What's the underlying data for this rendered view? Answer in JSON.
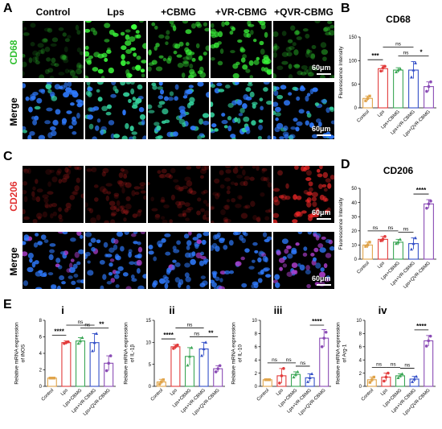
{
  "panels": {
    "A": "A",
    "B": "B",
    "C": "C",
    "D": "D",
    "E": "E"
  },
  "columns": [
    "Control",
    "Lps",
    "+CBMG",
    "+VR-CBMG",
    "+QVR-CBMG"
  ],
  "rows": {
    "cd68": "CD68",
    "merge": "Merge",
    "cd206": "CD206"
  },
  "scale_label": "60μm",
  "colors": {
    "control": "#e0a44a",
    "lps": "#e23b3b",
    "cbmg": "#3aa655",
    "vr": "#3450c8",
    "qvr": "#8a4bb5",
    "green_stain": "#3cff3c",
    "red_stain": "#ff2a2a",
    "blue_stain": "#2f7bff"
  },
  "chart_data": [
    {
      "id": "B",
      "type": "bar",
      "title": "CD68",
      "ylabel": "Fluorescence Intensity",
      "categories": [
        "Control",
        "Lps",
        "Lps+CBMG",
        "Lps+VR-CBMG",
        "Lps+QVR-CBMG"
      ],
      "values": [
        20,
        83,
        80,
        80,
        45
      ],
      "errors": [
        5,
        7,
        5,
        18,
        10
      ],
      "points": [
        [
          15,
          20,
          25
        ],
        [
          78,
          85,
          88
        ],
        [
          76,
          80,
          83
        ],
        [
          65,
          80,
          95
        ],
        [
          35,
          45,
          55
        ]
      ],
      "ylim": [
        0,
        150
      ],
      "yticks": [
        "0",
        "50",
        "100",
        "150"
      ],
      "sig": [
        {
          "from": 0,
          "to": 1,
          "label": "***"
        },
        {
          "from": 1,
          "to": 3,
          "label": "ns"
        },
        {
          "from": 2,
          "to": 3,
          "label": "ns"
        },
        {
          "from": 3,
          "to": 4,
          "label": "*"
        }
      ]
    },
    {
      "id": "D",
      "type": "bar",
      "title": "CD206",
      "ylabel": "Fluorescence Intensity",
      "categories": [
        "Control",
        "Lps",
        "Lps+CBMG",
        "Lps+VR-CBMG",
        "Lps+QVR-CBMG"
      ],
      "values": [
        10,
        14,
        12,
        11,
        39
      ],
      "errors": [
        2,
        2,
        2,
        4,
        3
      ],
      "points": [
        [
          9,
          10,
          12
        ],
        [
          13,
          14,
          16
        ],
        [
          11,
          12,
          14
        ],
        [
          7,
          11,
          15
        ],
        [
          36,
          39,
          41
        ]
      ],
      "ylim": [
        0,
        50
      ],
      "yticks": [
        "0",
        "10",
        "20",
        "30",
        "40",
        "50"
      ],
      "sig": [
        {
          "from": 0,
          "to": 1,
          "label": "ns"
        },
        {
          "from": 1,
          "to": 2,
          "label": "ns"
        },
        {
          "from": 2,
          "to": 3,
          "label": "ns"
        },
        {
          "from": 3,
          "to": 4,
          "label": "****"
        }
      ]
    },
    {
      "id": "i",
      "type": "bar",
      "title": "i",
      "ylabel": "Relative mRNA expression\nof iNOS",
      "categories": [
        "Control",
        "Lps",
        "Lps+CBMG",
        "Lps+VR-CBMG",
        "Lps+QVR-CBMG"
      ],
      "values": [
        1.0,
        5.3,
        5.5,
        5.3,
        2.8
      ],
      "errors": [
        0.1,
        0.2,
        0.4,
        1.1,
        0.9
      ],
      "points": [
        [
          1.0,
          1.0,
          1.0
        ],
        [
          5.2,
          5.3,
          5.4
        ],
        [
          5.2,
          5.5,
          5.9
        ],
        [
          4.3,
          5.3,
          6.4
        ],
        [
          1.9,
          2.8,
          3.7
        ]
      ],
      "ylim": [
        0,
        8
      ],
      "yticks": [
        "0",
        "2",
        "4",
        "6",
        "8"
      ],
      "sig": [
        {
          "from": 0,
          "to": 1,
          "label": "****"
        },
        {
          "from": 1,
          "to": 3,
          "label": "ns"
        },
        {
          "from": 2,
          "to": 3,
          "label": "ns"
        },
        {
          "from": 3,
          "to": 4,
          "label": "**"
        }
      ]
    },
    {
      "id": "ii",
      "type": "bar",
      "title": "ii",
      "ylabel": "Relative mRNA expression\nof IL-1β",
      "categories": [
        "Control",
        "Lps",
        "Lps+CBMG",
        "Lps+VR-CBMG",
        "Lps+QVR-CBMG"
      ],
      "values": [
        1.0,
        9.0,
        6.8,
        8.5,
        4.0
      ],
      "errors": [
        0.6,
        0.5,
        2.0,
        1.5,
        0.7
      ],
      "points": [
        [
          0.5,
          1.0,
          1.5
        ],
        [
          8.6,
          9.0,
          9.4
        ],
        [
          4.8,
          6.8,
          8.8
        ],
        [
          7.0,
          8.5,
          10.0
        ],
        [
          3.3,
          4.0,
          4.7
        ]
      ],
      "ylim": [
        0,
        15
      ],
      "yticks": [
        "0",
        "5",
        "10",
        "15"
      ],
      "sig": [
        {
          "from": 0,
          "to": 1,
          "label": "****"
        },
        {
          "from": 1,
          "to": 3,
          "label": "ns"
        },
        {
          "from": 2,
          "to": 3,
          "label": "ns"
        },
        {
          "from": 3,
          "to": 4,
          "label": "**"
        }
      ]
    },
    {
      "id": "iii",
      "type": "bar",
      "title": "iii",
      "ylabel": "Relative mRNA expression\nof IL-10",
      "categories": [
        "Control",
        "Lps",
        "Lps+CBMG",
        "Lps+VR-CBMG",
        "Lps+QVR-CBMG"
      ],
      "values": [
        1.0,
        1.6,
        1.8,
        1.3,
        7.3
      ],
      "errors": [
        0.1,
        1.1,
        0.4,
        0.6,
        1.3
      ],
      "points": [
        [
          1.0,
          1.0,
          1.0
        ],
        [
          0.5,
          1.6,
          2.7
        ],
        [
          1.4,
          1.8,
          2.2
        ],
        [
          0.7,
          1.3,
          1.9
        ],
        [
          6.0,
          7.3,
          8.2
        ]
      ],
      "ylim": [
        0,
        10
      ],
      "yticks": [
        "0",
        "2",
        "4",
        "6",
        "8",
        "10"
      ],
      "sig": [
        {
          "from": 0,
          "to": 1,
          "label": "ns"
        },
        {
          "from": 1,
          "to": 2,
          "label": "ns"
        },
        {
          "from": 2,
          "to": 3,
          "label": "ns"
        },
        {
          "from": 3,
          "to": 4,
          "label": "****"
        }
      ]
    },
    {
      "id": "iv",
      "type": "bar",
      "title": "iv",
      "ylabel": "Relative mRNA expression\nof Arg-1",
      "categories": [
        "Control",
        "Lps",
        "Lps+CBMG",
        "Lps+VR-CBMG",
        "Lps+QVR-CBMG"
      ],
      "values": [
        1.0,
        1.4,
        1.6,
        1.1,
        6.9
      ],
      "errors": [
        0.4,
        0.6,
        0.3,
        0.4,
        0.8
      ],
      "points": [
        [
          0.6,
          1.0,
          1.4
        ],
        [
          0.8,
          1.4,
          2.0
        ],
        [
          1.3,
          1.6,
          1.9
        ],
        [
          0.7,
          1.1,
          1.5
        ],
        [
          6.1,
          6.9,
          7.6
        ]
      ],
      "ylim": [
        0,
        10
      ],
      "yticks": [
        "0",
        "2",
        "4",
        "6",
        "8",
        "10"
      ],
      "sig": [
        {
          "from": 0,
          "to": 1,
          "label": "ns"
        },
        {
          "from": 1,
          "to": 2,
          "label": "ns"
        },
        {
          "from": 2,
          "to": 3,
          "label": "ns"
        },
        {
          "from": 3,
          "to": 4,
          "label": "****"
        }
      ]
    }
  ]
}
